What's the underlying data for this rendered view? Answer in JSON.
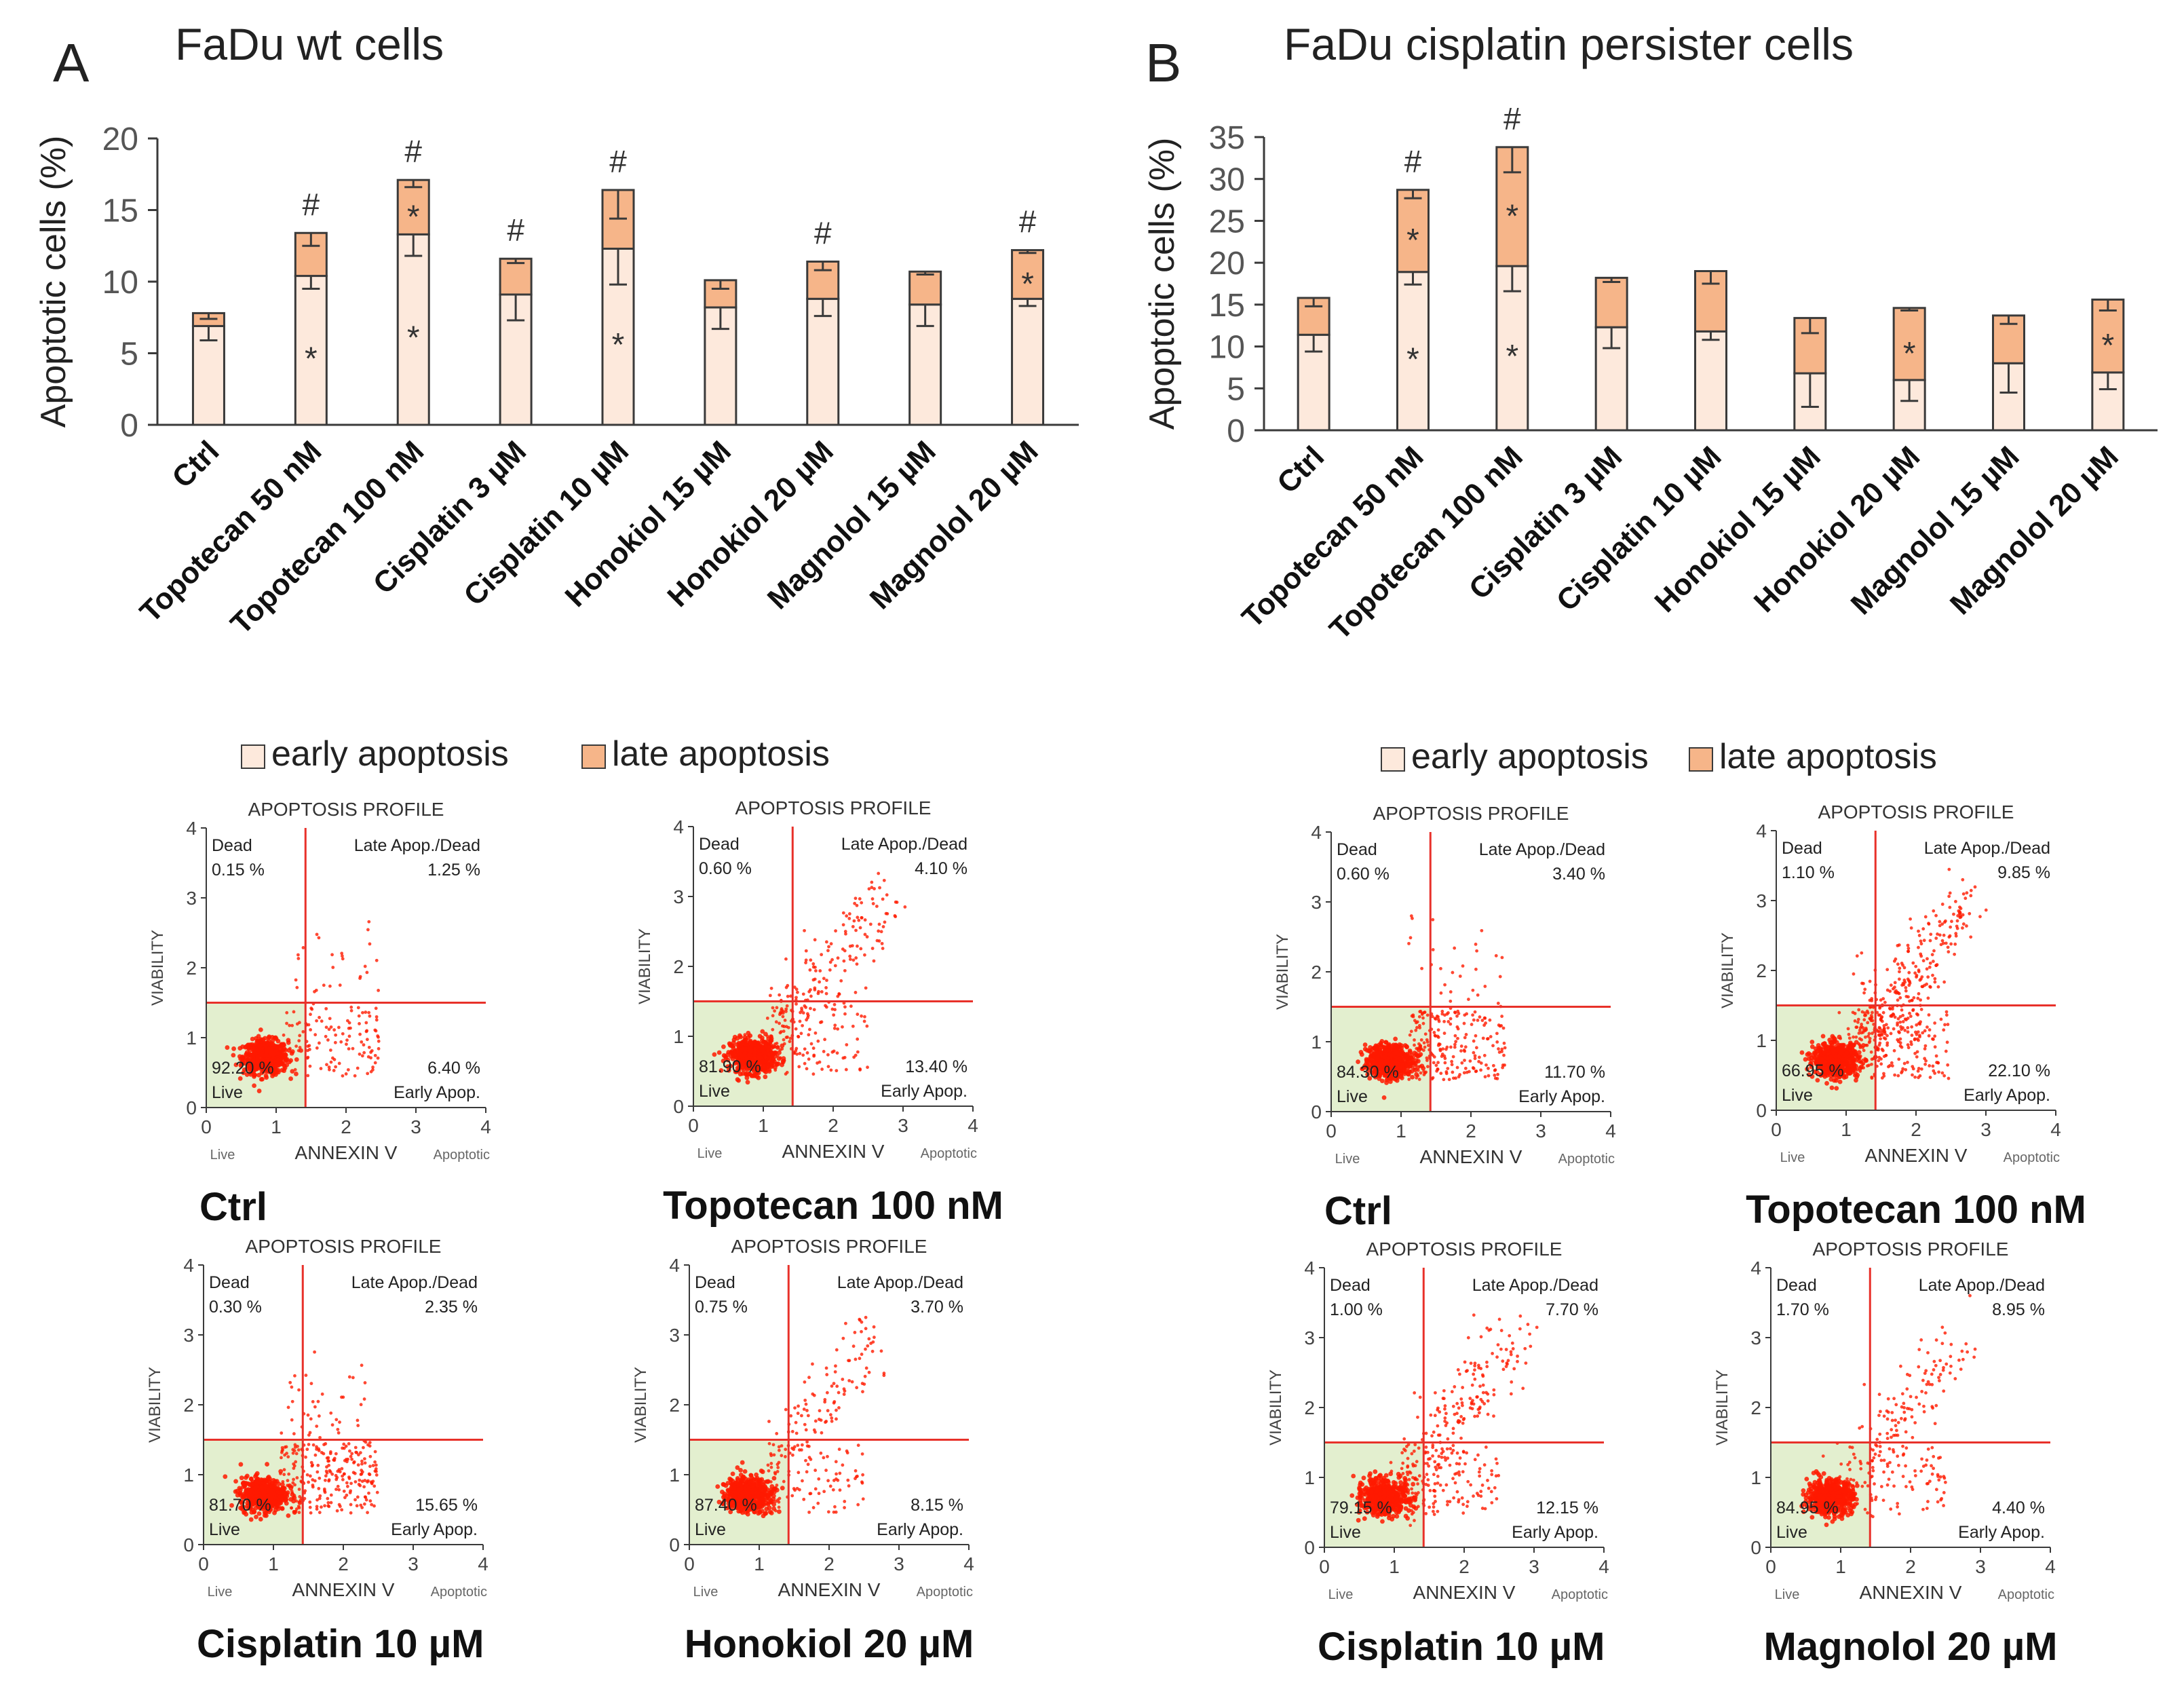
{
  "panel_letters": [
    "A",
    "B"
  ],
  "legend": {
    "early": "early apoptosis",
    "late": "late apoptosis"
  },
  "colors": {
    "early": "#fde9dc",
    "late": "#f6b589",
    "bar_stroke": "#3a3a3a",
    "axis": "#3a3a3a",
    "dot": "#ff1a00",
    "live_fill": "#e3efcf",
    "gate": "#e8312a",
    "tick_text": "#555555"
  },
  "chart_data": [
    {
      "type": "bar",
      "stacked": true,
      "title": "FaDu wt cells",
      "ylabel": "Apoptotic cells (%)",
      "ylim": [
        0,
        20
      ],
      "yticks": [
        "0",
        "5",
        "10",
        "15",
        "20"
      ],
      "categories": [
        "Ctrl",
        "Topotecan 50 nM",
        "Topotecan 100 nM",
        "Cisplatin 3 µM",
        "Cisplatin 10 µM",
        "Honokiol 15 µM",
        "Honokiol 20 µM",
        "Magnolol 15 µM",
        "Magnolol 20 µM"
      ],
      "series": [
        {
          "name": "early apoptosis",
          "values": [
            6.9,
            10.4,
            13.3,
            9.1,
            12.3,
            8.2,
            8.8,
            8.4,
            8.8
          ],
          "errors": [
            1.0,
            0.9,
            1.5,
            1.8,
            2.5,
            1.5,
            1.2,
            1.5,
            0.5
          ]
        },
        {
          "name": "late apoptosis",
          "values": [
            0.9,
            3.0,
            3.8,
            2.5,
            4.1,
            1.9,
            2.6,
            2.3,
            3.4
          ],
          "errors": [
            0.4,
            0.9,
            0.5,
            0.3,
            2.0,
            0.6,
            0.6,
            0.2,
            0.2
          ]
        }
      ],
      "annotations": {
        "early_star": [
          false,
          true,
          true,
          false,
          true,
          false,
          false,
          false,
          false
        ],
        "late_star": [
          false,
          false,
          true,
          false,
          false,
          false,
          false,
          false,
          true
        ],
        "hash": [
          false,
          true,
          true,
          true,
          true,
          false,
          true,
          false,
          true
        ],
        "star_symbol": "*",
        "hash_symbol": "#"
      }
    },
    {
      "type": "bar",
      "stacked": true,
      "title": "FaDu cisplatin persister cells",
      "ylabel": "Apoptotic cells (%)",
      "ylim": [
        0,
        35
      ],
      "yticks": [
        "0",
        "5",
        "10",
        "15",
        "20",
        "25",
        "30",
        "35"
      ],
      "categories": [
        "Ctrl",
        "Topotecan 50 nM",
        "Topotecan 100 nM",
        "Cisplatin 3 µM",
        "Cisplatin 10 µM",
        "Honokiol 15 µM",
        "Honokiol 20 µM",
        "Magnolol 15 µM",
        "Magnolol 20 µM"
      ],
      "series": [
        {
          "name": "early apoptosis",
          "values": [
            11.4,
            18.9,
            19.6,
            12.3,
            11.8,
            6.8,
            6.0,
            8.0,
            6.9
          ],
          "errors": [
            2.0,
            1.5,
            3.0,
            2.5,
            1.0,
            4.0,
            2.5,
            3.5,
            2.0
          ]
        },
        {
          "name": "late apoptosis",
          "values": [
            4.4,
            9.8,
            14.2,
            5.9,
            7.2,
            6.6,
            8.6,
            5.7,
            8.7
          ],
          "errors": [
            1.0,
            1.0,
            3.0,
            0.5,
            1.5,
            1.8,
            0.3,
            1.0,
            1.3
          ]
        }
      ],
      "annotations": {
        "early_star": [
          false,
          true,
          true,
          false,
          false,
          false,
          false,
          false,
          false
        ],
        "late_star": [
          false,
          true,
          true,
          false,
          false,
          false,
          true,
          false,
          true
        ],
        "hash": [
          false,
          true,
          true,
          false,
          false,
          false,
          false,
          false,
          false
        ],
        "star_symbol": "*",
        "hash_symbol": "#"
      }
    }
  ],
  "flow_plots": [
    {
      "caption": "Ctrl",
      "dead": "0.15 %",
      "late": "1.25 %",
      "early": "6.40 %",
      "live": "92.20 %",
      "diag": false
    },
    {
      "caption": "Topotecan 100 nM",
      "dead": "0.60 %",
      "late": "4.10 %",
      "early": "13.40 %",
      "live": "81.90 %",
      "diag": true
    },
    {
      "caption": "Cisplatin 10 µM",
      "dead": "0.30 %",
      "late": "2.35 %",
      "early": "15.65 %",
      "live": "81.70 %",
      "diag": false
    },
    {
      "caption": "Honokiol 20 µM",
      "dead": "0.75 %",
      "late": "3.70 %",
      "early": "8.15 %",
      "live": "87.40 %",
      "diag": true
    },
    {
      "caption": "Ctrl",
      "dead": "0.60 %",
      "late": "3.40 %",
      "early": "11.70 %",
      "live": "84.30 %",
      "diag": false
    },
    {
      "caption": "Topotecan 100 nM",
      "dead": "1.10 %",
      "late": "9.85 %",
      "early": "22.10 %",
      "live": "66.95 %",
      "diag": true
    },
    {
      "caption": "Cisplatin 10 µM",
      "dead": "1.00 %",
      "late": "7.70 %",
      "early": "12.15 %",
      "live": "79.15 %",
      "diag": true
    },
    {
      "caption": "Magnolol 20 µM",
      "dead": "1.70 %",
      "late": "8.95 %",
      "early": "4.40 %",
      "live": "84.95 %",
      "diag": true
    }
  ],
  "flow_labels": {
    "title": "APOPTOSIS PROFILE",
    "y_axis": "VIABILITY",
    "x_axis": "ANNEXIN V",
    "x_left": "Live",
    "x_right": "Apoptotic",
    "q_dead": "Dead",
    "q_late": "Late Apop./Dead",
    "q_early": "Early Apop.",
    "q_live": "Live",
    "ticks": [
      "0",
      "1",
      "2",
      "3",
      "4"
    ]
  }
}
